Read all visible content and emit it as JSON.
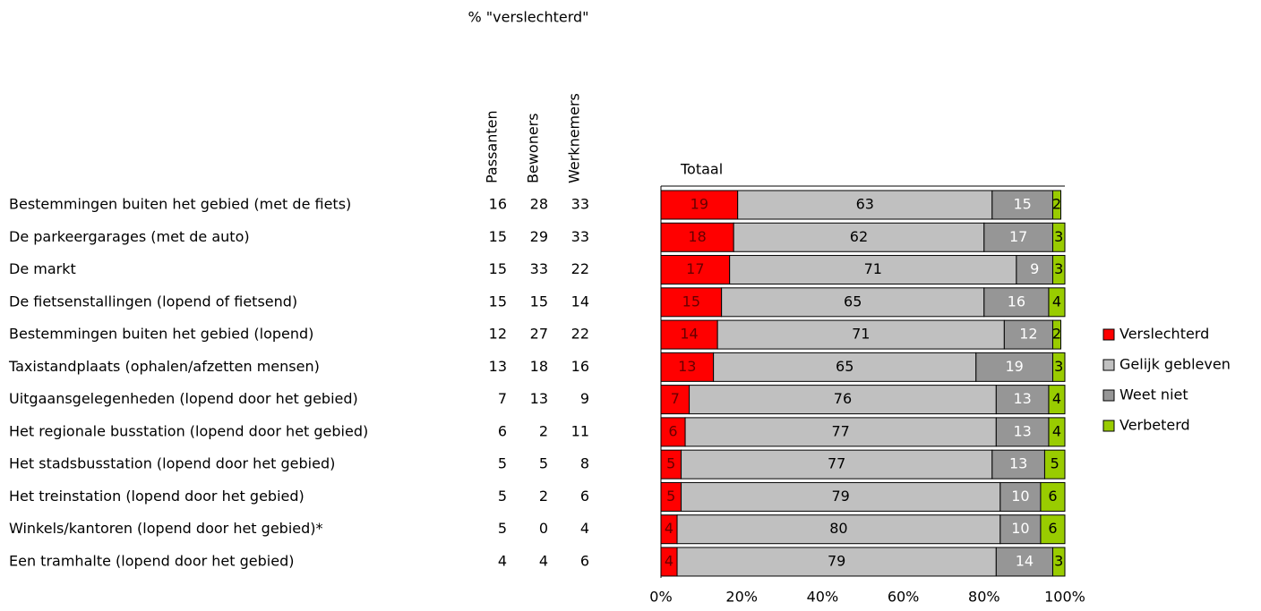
{
  "chart_data": {
    "type": "stacked-bar-horizontal",
    "title": "Totaal",
    "categories": [
      "Bestemmingen buiten het gebied (met de fiets)",
      "De parkeergarages (met de auto)",
      "De markt",
      "De fietsenstallingen (lopend of fietsend)",
      "Bestemmingen buiten het gebied (lopend)",
      "Taxistandplaats (ophalen/afzetten mensen)",
      "Uitgaansgelegenheden (lopend door het gebied)",
      "Het regionale busstation (lopend door het gebied)",
      "Het stadsbusstation (lopend door het gebied)",
      "Het treinstation (lopend door het gebied)",
      "Winkels/kantoren (lopend door het gebied)*",
      "Een tramhalte (lopend door het gebied)"
    ],
    "series": [
      {
        "name": "Verslechterd",
        "color": "#ff0000",
        "values": [
          19,
          18,
          17,
          15,
          14,
          13,
          7,
          6,
          5,
          5,
          4,
          4
        ]
      },
      {
        "name": "Gelijk gebleven",
        "color": "#c0c0c0",
        "values": [
          63,
          62,
          71,
          65,
          71,
          65,
          76,
          77,
          77,
          79,
          80,
          79
        ]
      },
      {
        "name": "Weet niet",
        "color": "#969696",
        "values": [
          15,
          17,
          9,
          16,
          12,
          19,
          13,
          13,
          13,
          10,
          10,
          14
        ]
      },
      {
        "name": "Verbeterd",
        "color": "#99cc00",
        "values": [
          2,
          3,
          3,
          4,
          2,
          3,
          4,
          4,
          5,
          6,
          6,
          3
        ]
      }
    ],
    "xlim": [
      0,
      100
    ],
    "xticks": [
      {
        "value": 0,
        "label": "0%"
      },
      {
        "value": 20,
        "label": "20%"
      },
      {
        "value": 40,
        "label": "40%"
      },
      {
        "value": 60,
        "label": "60%"
      },
      {
        "value": 80,
        "label": "80%"
      },
      {
        "value": 100,
        "label": "100%"
      }
    ],
    "legend": "right"
  },
  "table": {
    "title": "% \"verslechterd\"",
    "columns": [
      "Passanten",
      "Bewoners",
      "Werknemers"
    ],
    "rows": [
      [
        16,
        28,
        33
      ],
      [
        15,
        29,
        33
      ],
      [
        15,
        33,
        22
      ],
      [
        15,
        15,
        14
      ],
      [
        12,
        27,
        22
      ],
      [
        13,
        18,
        16
      ],
      [
        7,
        13,
        9
      ],
      [
        6,
        2,
        11
      ],
      [
        5,
        5,
        8
      ],
      [
        5,
        2,
        6
      ],
      [
        5,
        0,
        4
      ],
      [
        4,
        4,
        6
      ]
    ]
  }
}
